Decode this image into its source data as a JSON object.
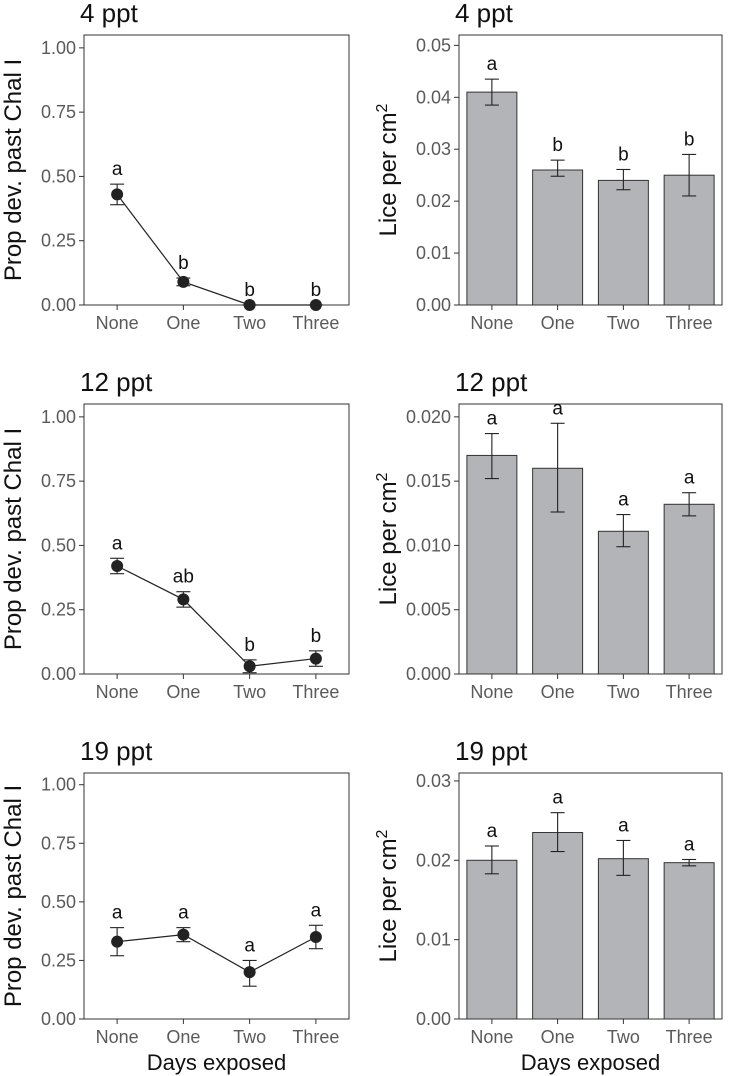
{
  "figure": {
    "x_axis_title": "Days exposed"
  },
  "chart_data": [
    {
      "type": "line",
      "title": "4 ppt",
      "ylabel": "Prop dev. past Chal I",
      "xlabel": "",
      "categories": [
        "None",
        "One",
        "Two",
        "Three"
      ],
      "values": [
        0.43,
        0.09,
        0.0,
        0.0
      ],
      "error_low": [
        0.39,
        0.075,
        0.0,
        0.0
      ],
      "error_high": [
        0.47,
        0.105,
        0.0,
        0.0
      ],
      "letters": [
        "a",
        "b",
        "b",
        "b"
      ],
      "ylim": [
        0,
        1.05
      ],
      "yticks": [
        0.0,
        0.25,
        0.5,
        0.75,
        1.0
      ],
      "ytick_labels": [
        "0.00",
        "0.25",
        "0.50",
        "0.75",
        "1.00"
      ]
    },
    {
      "type": "bar",
      "title": "4 ppt",
      "ylabel": "Lice per cm",
      "ylabel_superscript": "2",
      "xlabel": "",
      "categories": [
        "None",
        "One",
        "Two",
        "Three"
      ],
      "values": [
        0.041,
        0.026,
        0.024,
        0.025
      ],
      "error_low": [
        0.0385,
        0.0248,
        0.0222,
        0.021
      ],
      "error_high": [
        0.0435,
        0.0279,
        0.0261,
        0.029
      ],
      "letters": [
        "a",
        "b",
        "b",
        "b"
      ],
      "ylim": [
        0,
        0.052
      ],
      "yticks": [
        0.0,
        0.01,
        0.02,
        0.03,
        0.04,
        0.05
      ],
      "ytick_labels": [
        "0.00",
        "0.01",
        "0.02",
        "0.03",
        "0.04",
        "0.05"
      ]
    },
    {
      "type": "line",
      "title": "12 ppt",
      "ylabel": "Prop dev. past Chal I",
      "xlabel": "",
      "categories": [
        "None",
        "One",
        "Two",
        "Three"
      ],
      "values": [
        0.42,
        0.29,
        0.03,
        0.06
      ],
      "error_low": [
        0.39,
        0.26,
        0.005,
        0.03
      ],
      "error_high": [
        0.45,
        0.32,
        0.055,
        0.09
      ],
      "letters": [
        "a",
        "ab",
        "b",
        "b"
      ],
      "ylim": [
        0,
        1.05
      ],
      "yticks": [
        0.0,
        0.25,
        0.5,
        0.75,
        1.0
      ],
      "ytick_labels": [
        "0.00",
        "0.25",
        "0.50",
        "0.75",
        "1.00"
      ]
    },
    {
      "type": "bar",
      "title": "12 ppt",
      "ylabel": "Lice per cm",
      "ylabel_superscript": "2",
      "xlabel": "",
      "categories": [
        "None",
        "One",
        "Two",
        "Three"
      ],
      "values": [
        0.017,
        0.016,
        0.0111,
        0.0132
      ],
      "error_low": [
        0.0152,
        0.0126,
        0.0099,
        0.0123
      ],
      "error_high": [
        0.0187,
        0.0195,
        0.0124,
        0.0141
      ],
      "letters": [
        "a",
        "a",
        "a",
        "a"
      ],
      "ylim": [
        0,
        0.021
      ],
      "yticks": [
        0.0,
        0.005,
        0.01,
        0.015,
        0.02
      ],
      "ytick_labels": [
        "0.000",
        "0.005",
        "0.010",
        "0.015",
        "0.020"
      ]
    },
    {
      "type": "line",
      "title": "19 ppt",
      "ylabel": "Prop dev. past Chal I",
      "xlabel": "Days exposed",
      "categories": [
        "None",
        "One",
        "Two",
        "Three"
      ],
      "values": [
        0.33,
        0.36,
        0.2,
        0.35
      ],
      "error_low": [
        0.27,
        0.33,
        0.14,
        0.3
      ],
      "error_high": [
        0.39,
        0.39,
        0.25,
        0.4
      ],
      "letters": [
        "a",
        "a",
        "a",
        "a"
      ],
      "ylim": [
        0,
        1.05
      ],
      "yticks": [
        0.0,
        0.25,
        0.5,
        0.75,
        1.0
      ],
      "ytick_labels": [
        "0.00",
        "0.25",
        "0.50",
        "0.75",
        "1.00"
      ]
    },
    {
      "type": "bar",
      "title": "19 ppt",
      "ylabel": "Lice per cm",
      "ylabel_superscript": "2",
      "xlabel": "Days exposed",
      "categories": [
        "None",
        "One",
        "Two",
        "Three"
      ],
      "values": [
        0.02,
        0.0235,
        0.0202,
        0.0197
      ],
      "error_low": [
        0.0183,
        0.0211,
        0.0181,
        0.0193
      ],
      "error_high": [
        0.0218,
        0.026,
        0.0225,
        0.0201
      ],
      "letters": [
        "a",
        "a",
        "a",
        "a"
      ],
      "ylim": [
        0,
        0.031
      ],
      "yticks": [
        0.0,
        0.01,
        0.02,
        0.03
      ],
      "ytick_labels": [
        "0.00",
        "0.01",
        "0.02",
        "0.03"
      ]
    }
  ]
}
